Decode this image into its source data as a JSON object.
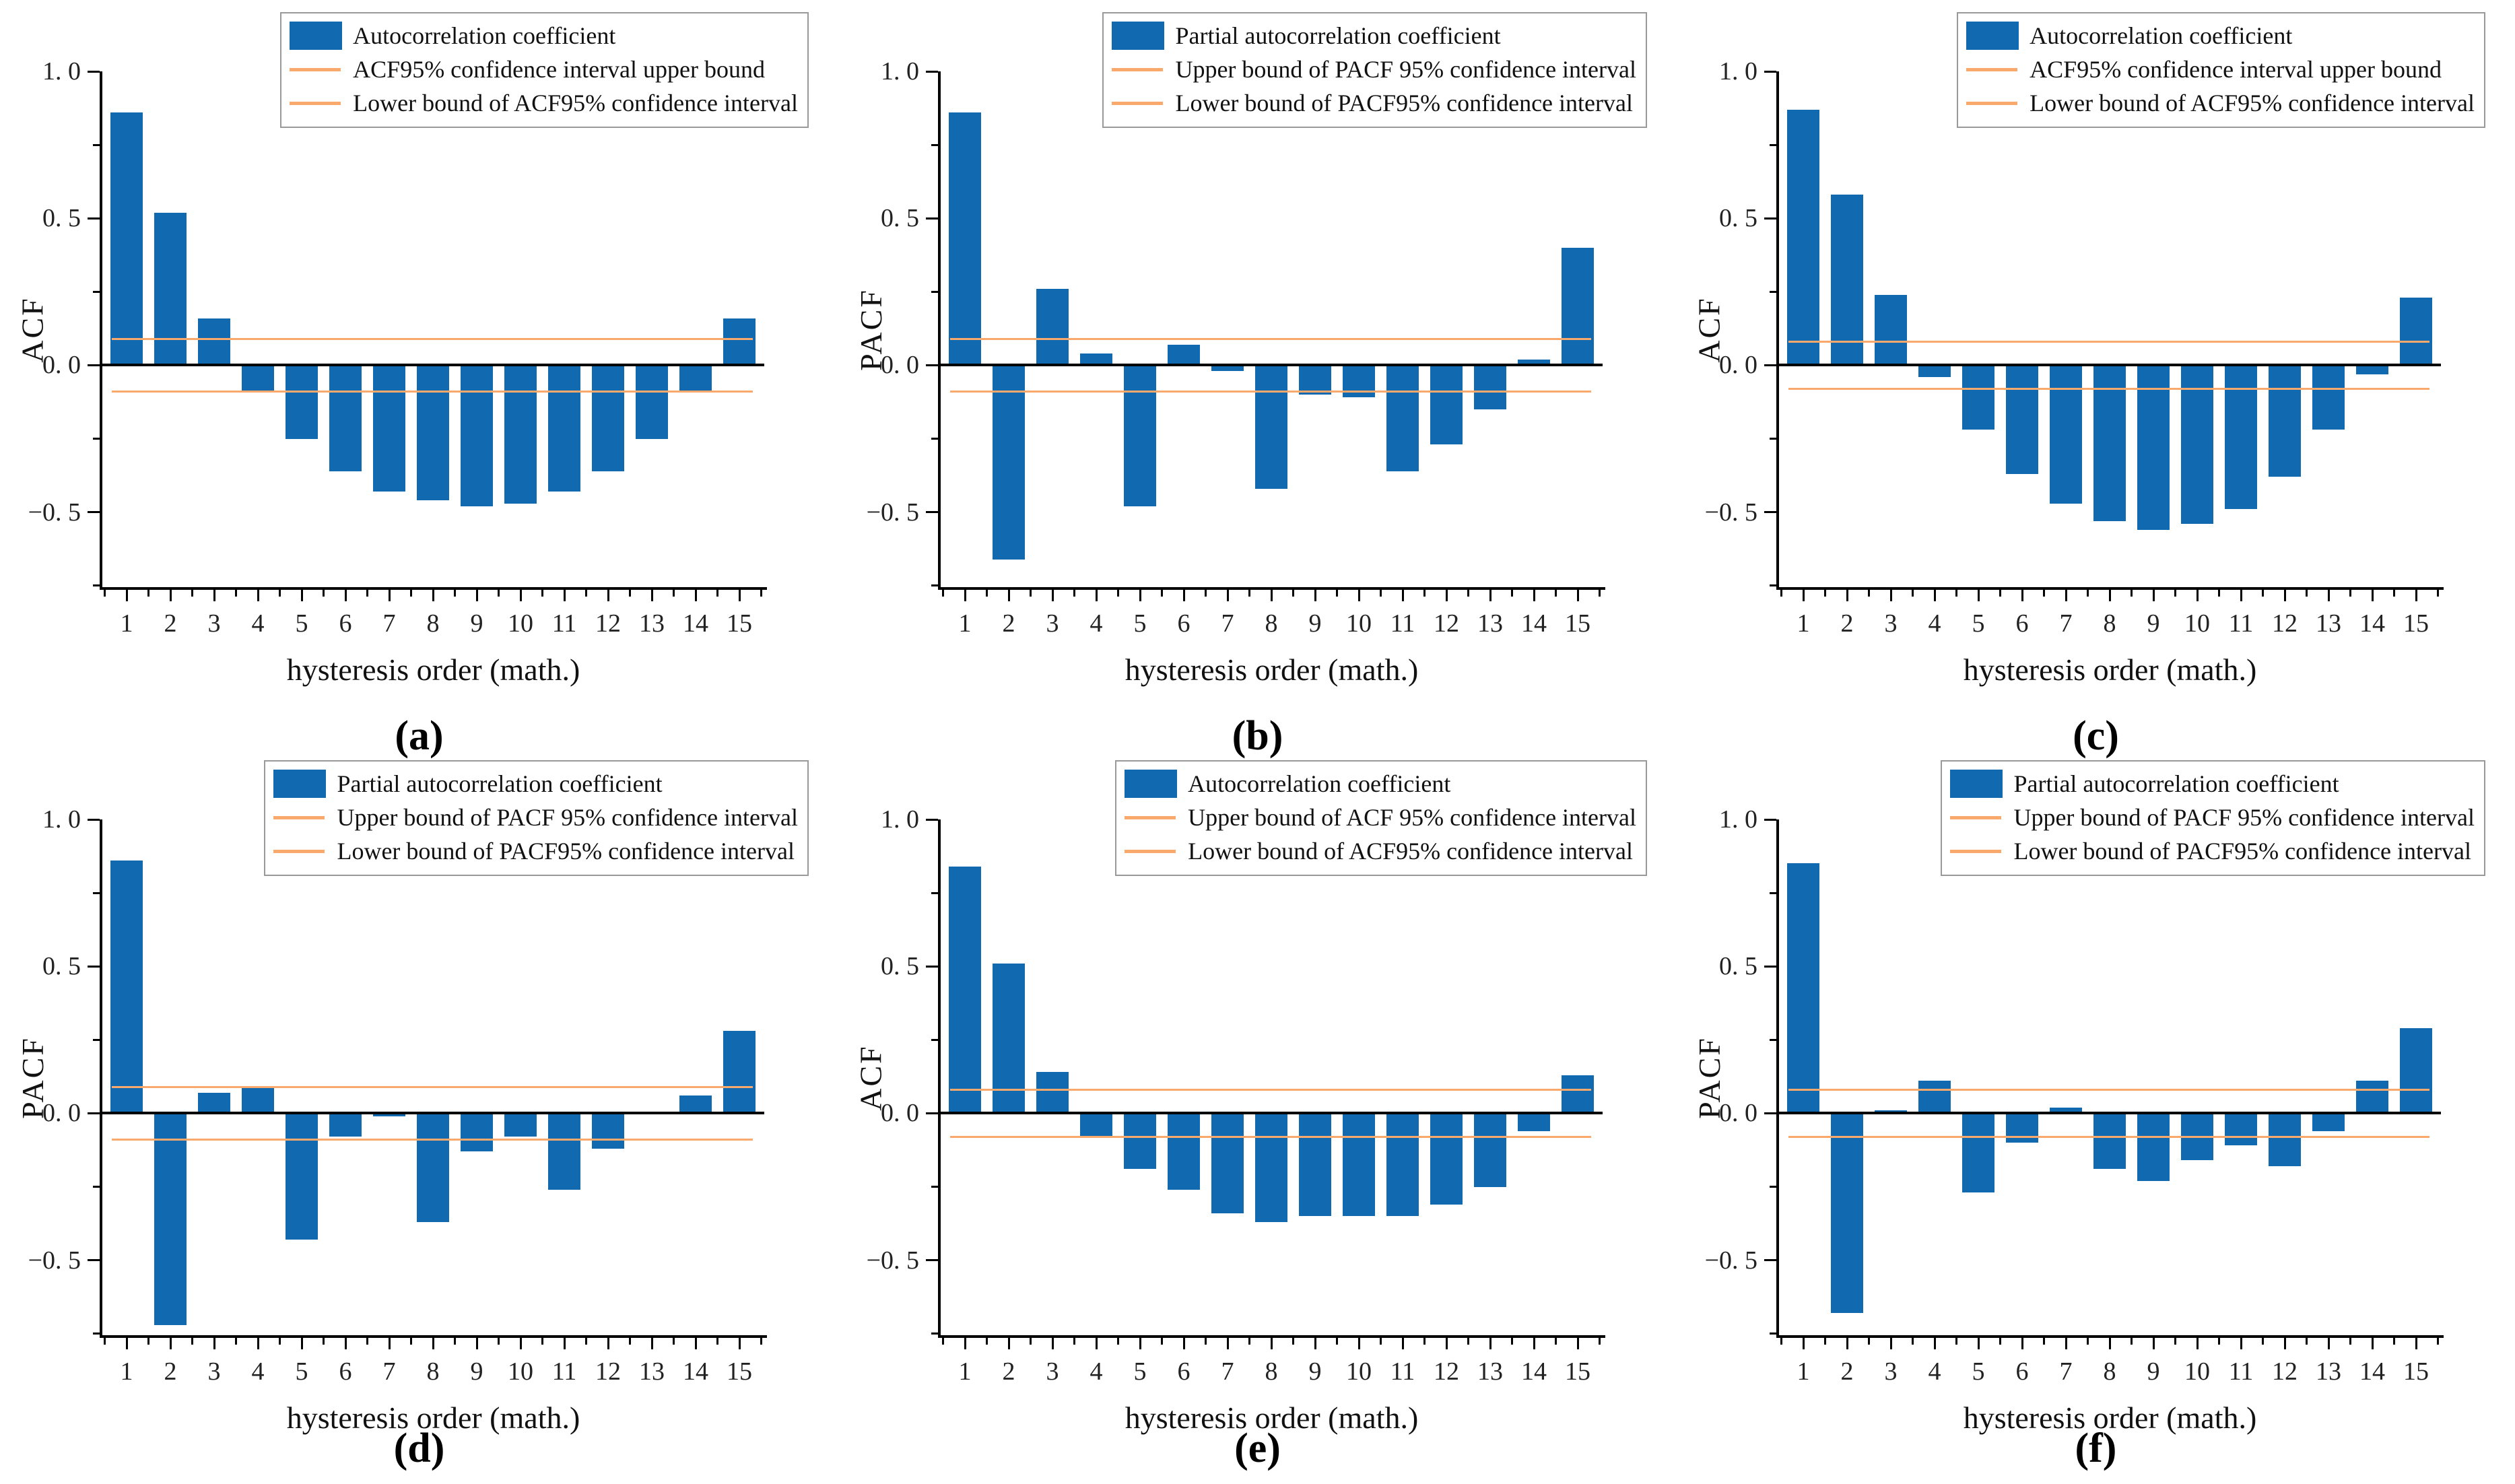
{
  "figure": {
    "x_ticks": [
      "1",
      "2",
      "3",
      "4",
      "5",
      "6",
      "7",
      "8",
      "9",
      "10",
      "11",
      "12",
      "13",
      "14",
      "15"
    ],
    "y_ticks": [
      {
        "value": 1.0,
        "label": "1. 0"
      },
      {
        "value": 0.5,
        "label": "0. 5"
      },
      {
        "value": 0.0,
        "label": "0. 0"
      },
      {
        "value": -0.5,
        "label": "−0. 5"
      }
    ],
    "y_minor_tick_values": [
      0.75,
      0.25,
      -0.25,
      -0.75
    ],
    "colors": {
      "bar_fill": "#1169b0",
      "ci_line": "#f9a96c",
      "axis": "#000000",
      "legend_border": "#999999",
      "background": "#ffffff"
    }
  },
  "chart_data": [
    {
      "id": "a",
      "type": "bar",
      "title": "(a)",
      "panel_label": "(a)",
      "ylabel": "ACF",
      "xlabel": "hysteresis order (math.)",
      "categories": [
        1,
        2,
        3,
        4,
        5,
        6,
        7,
        8,
        9,
        10,
        11,
        12,
        13,
        14,
        15
      ],
      "values": [
        0.86,
        0.52,
        0.16,
        -0.09,
        -0.25,
        -0.36,
        -0.43,
        -0.46,
        -0.48,
        -0.47,
        -0.43,
        -0.36,
        -0.25,
        -0.09,
        0.16
      ],
      "ci_upper": 0.09,
      "ci_lower": -0.09,
      "ylim": [
        -0.755,
        1.0
      ],
      "grid": false,
      "legend_position": "top-right",
      "legend": [
        {
          "swatch": "bar",
          "label": "Autocorrelation coefficient"
        },
        {
          "swatch": "line",
          "label": "ACF95% confidence interval upper bound"
        },
        {
          "swatch": "line",
          "label": "Lower bound of ACF95% confidence interval"
        }
      ]
    },
    {
      "id": "b",
      "type": "bar",
      "title": "(b)",
      "panel_label": "(b)",
      "ylabel": "PACF",
      "xlabel": "hysteresis order (math.)",
      "categories": [
        1,
        2,
        3,
        4,
        5,
        6,
        7,
        8,
        9,
        10,
        11,
        12,
        13,
        14,
        15
      ],
      "values": [
        0.86,
        -0.66,
        0.26,
        0.04,
        -0.48,
        0.07,
        -0.02,
        -0.42,
        -0.1,
        -0.11,
        -0.36,
        -0.27,
        -0.15,
        0.02,
        0.4
      ],
      "ci_upper": 0.09,
      "ci_lower": -0.09,
      "ylim": [
        -0.755,
        1.0
      ],
      "grid": false,
      "legend_position": "top-right",
      "legend": [
        {
          "swatch": "bar",
          "label": "Partial autocorrelation coefficient"
        },
        {
          "swatch": "line",
          "label": "Upper bound of PACF 95% confidence interval"
        },
        {
          "swatch": "line",
          "label": "Lower bound of PACF95% confidence interval"
        }
      ]
    },
    {
      "id": "c",
      "type": "bar",
      "title": "(c)",
      "panel_label": "(c)",
      "ylabel": "ACF",
      "xlabel": "hysteresis order (math.)",
      "categories": [
        1,
        2,
        3,
        4,
        5,
        6,
        7,
        8,
        9,
        10,
        11,
        12,
        13,
        14,
        15
      ],
      "values": [
        0.87,
        0.58,
        0.24,
        -0.04,
        -0.22,
        -0.37,
        -0.47,
        -0.53,
        -0.56,
        -0.54,
        -0.49,
        -0.38,
        -0.22,
        -0.03,
        0.23
      ],
      "ci_upper": 0.08,
      "ci_lower": -0.08,
      "ylim": [
        -0.755,
        1.0
      ],
      "grid": false,
      "legend_position": "top-right",
      "legend": [
        {
          "swatch": "bar",
          "label": "Autocorrelation coefficient"
        },
        {
          "swatch": "line",
          "label": "ACF95% confidence interval upper bound"
        },
        {
          "swatch": "line",
          "label": "Lower bound of ACF95% confidence interval"
        }
      ]
    },
    {
      "id": "d",
      "type": "bar",
      "title": "(d)",
      "panel_label": "(d)",
      "ylabel": "PACF",
      "xlabel": "hysteresis order (math.)",
      "categories": [
        1,
        2,
        3,
        4,
        5,
        6,
        7,
        8,
        9,
        10,
        11,
        12,
        13,
        14,
        15
      ],
      "values": [
        0.86,
        -0.72,
        0.07,
        0.09,
        -0.43,
        -0.08,
        -0.01,
        -0.37,
        -0.13,
        -0.08,
        -0.26,
        -0.12,
        0.0,
        0.06,
        0.28
      ],
      "ci_upper": 0.09,
      "ci_lower": -0.09,
      "ylim": [
        -0.755,
        1.0
      ],
      "grid": false,
      "legend_position": "top-right",
      "legend": [
        {
          "swatch": "bar",
          "label": "Partial autocorrelation coefficient"
        },
        {
          "swatch": "line",
          "label": "Upper bound of PACF 95% confidence interval"
        },
        {
          "swatch": "line",
          "label": "Lower bound of PACF95% confidence interval"
        }
      ]
    },
    {
      "id": "e",
      "type": "bar",
      "title": "(e)",
      "panel_label": "(e)",
      "ylabel": "ACF",
      "xlabel": "hysteresis order (math.)",
      "categories": [
        1,
        2,
        3,
        4,
        5,
        6,
        7,
        8,
        9,
        10,
        11,
        12,
        13,
        14,
        15
      ],
      "values": [
        0.84,
        0.51,
        0.14,
        -0.08,
        -0.19,
        -0.26,
        -0.34,
        -0.37,
        -0.35,
        -0.35,
        -0.35,
        -0.31,
        -0.25,
        -0.06,
        0.13
      ],
      "ci_upper": 0.08,
      "ci_lower": -0.08,
      "ylim": [
        -0.755,
        1.0
      ],
      "grid": false,
      "legend_position": "top-right",
      "legend": [
        {
          "swatch": "bar",
          "label": "Autocorrelation coefficient"
        },
        {
          "swatch": "line",
          "label": "Upper bound of ACF 95% confidence interval"
        },
        {
          "swatch": "line",
          "label": "Lower bound of ACF95% confidence interval"
        }
      ]
    },
    {
      "id": "f",
      "type": "bar",
      "title": "(f)",
      "panel_label": "(f)",
      "ylabel": "PACF",
      "xlabel": "hysteresis order (math.)",
      "categories": [
        1,
        2,
        3,
        4,
        5,
        6,
        7,
        8,
        9,
        10,
        11,
        12,
        13,
        14,
        15
      ],
      "values": [
        0.85,
        -0.68,
        0.01,
        0.11,
        -0.27,
        -0.1,
        0.02,
        -0.19,
        -0.23,
        -0.16,
        -0.11,
        -0.18,
        -0.06,
        0.11,
        0.29
      ],
      "ci_upper": 0.08,
      "ci_lower": -0.08,
      "ylim": [
        -0.755,
        1.0
      ],
      "grid": false,
      "legend_position": "top-right",
      "legend": [
        {
          "swatch": "bar",
          "label": "Partial autocorrelation coefficient"
        },
        {
          "swatch": "line",
          "label": "Upper bound of PACF 95% confidence interval"
        },
        {
          "swatch": "line",
          "label": "Lower bound of PACF95% confidence interval"
        }
      ]
    }
  ]
}
